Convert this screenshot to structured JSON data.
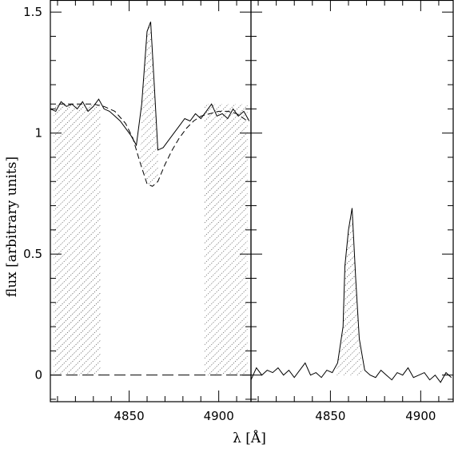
{
  "chart_data": {
    "type": "line",
    "xlabel": "λ [Å]",
    "ylabel": "flux [arbitrary units]",
    "grid": false,
    "panels": [
      {
        "name": "left",
        "xlim": [
          4806,
          4918
        ],
        "ylim": [
          -0.11,
          1.55
        ],
        "xticks": [
          4850,
          4900
        ],
        "yticks": [
          0,
          0.5,
          1,
          1.5
        ],
        "ytick_labels": [
          "0",
          "0.5",
          "1",
          "1.5"
        ],
        "hatched_windows": [
          [
            4808,
            4834
          ],
          [
            4892,
            4916
          ]
        ],
        "zero_line": true,
        "observed": {
          "x": [
            4806,
            4809,
            4812,
            4815,
            4818,
            4821,
            4824,
            4827,
            4830,
            4833,
            4836,
            4839,
            4842,
            4845,
            4848,
            4851,
            4854,
            4857,
            4860,
            4862,
            4864,
            4866,
            4869,
            4872,
            4875,
            4878,
            4881,
            4884,
            4887,
            4890,
            4893,
            4896,
            4899,
            4902,
            4905,
            4908,
            4911,
            4914,
            4917
          ],
          "y": [
            1.1,
            1.09,
            1.13,
            1.11,
            1.12,
            1.1,
            1.13,
            1.09,
            1.11,
            1.14,
            1.1,
            1.09,
            1.07,
            1.05,
            1.02,
            0.99,
            0.95,
            1.12,
            1.42,
            1.46,
            1.2,
            0.93,
            0.94,
            0.97,
            1.0,
            1.03,
            1.06,
            1.05,
            1.08,
            1.06,
            1.09,
            1.12,
            1.07,
            1.08,
            1.06,
            1.1,
            1.07,
            1.09,
            1.05
          ]
        },
        "continuum_fit": {
          "x": [
            4806,
            4812,
            4818,
            4824,
            4830,
            4836,
            4842,
            4848,
            4852,
            4856,
            4860,
            4863,
            4866,
            4870,
            4874,
            4878,
            4882,
            4886,
            4890,
            4895,
            4900,
            4905,
            4910,
            4916
          ],
          "y": [
            1.12,
            1.12,
            1.12,
            1.12,
            1.12,
            1.11,
            1.09,
            1.04,
            0.98,
            0.88,
            0.79,
            0.78,
            0.8,
            0.87,
            0.93,
            0.98,
            1.02,
            1.05,
            1.07,
            1.08,
            1.09,
            1.09,
            1.08,
            1.05
          ]
        }
      },
      {
        "name": "right",
        "xlim": [
          4806,
          4918
        ],
        "ylim": [
          -0.11,
          1.55
        ],
        "xticks": [
          4850,
          4900
        ],
        "yticks": [
          0,
          0.5,
          1,
          1.5
        ],
        "observed": {
          "x": [
            4806,
            4809,
            4812,
            4815,
            4818,
            4821,
            4824,
            4827,
            4830,
            4833,
            4836,
            4839,
            4842,
            4845,
            4848,
            4851,
            4854,
            4857,
            4858,
            4860,
            4862,
            4864,
            4866,
            4869,
            4872,
            4875,
            4878,
            4881,
            4884,
            4887,
            4890,
            4893,
            4896,
            4899,
            4902,
            4905,
            4908,
            4911,
            4914,
            4917
          ],
          "y": [
            -0.02,
            0.03,
            0.0,
            0.02,
            0.01,
            0.03,
            0.0,
            0.02,
            -0.01,
            0.02,
            0.05,
            0.0,
            0.01,
            -0.01,
            0.02,
            0.01,
            0.05,
            0.2,
            0.45,
            0.6,
            0.69,
            0.4,
            0.15,
            0.02,
            0.0,
            -0.01,
            0.02,
            0.0,
            -0.02,
            0.01,
            0.0,
            0.03,
            -0.01,
            0.0,
            0.01,
            -0.02,
            0.0,
            -0.03,
            0.01,
            -0.01
          ]
        }
      }
    ]
  }
}
